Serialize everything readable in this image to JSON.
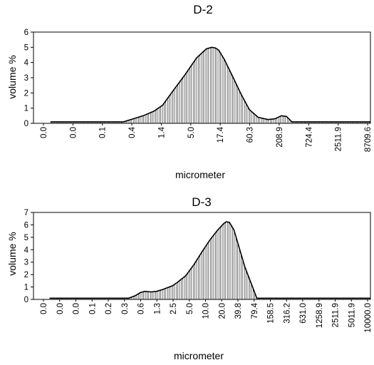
{
  "chart_data": [
    {
      "type": "area",
      "title": "D-2",
      "xlabel": "micrometer",
      "ylabel": "volume %",
      "ylim": [
        0,
        6
      ],
      "yticks": [
        0,
        1,
        2,
        3,
        4,
        5,
        6
      ],
      "x_scale": "log",
      "x_tick_labels": [
        "0.0",
        "0.0",
        "0.1",
        "0.4",
        "1.4",
        "5.0",
        "17.4",
        "60.3",
        "208.9",
        "724.4",
        "2511.9",
        "8709.6"
      ],
      "grid": false,
      "fill_pattern": "vertical-hatch",
      "x": [
        0.02,
        0.3,
        0.4,
        0.6,
        0.9,
        1.4,
        2.0,
        3.0,
        5.0,
        8.0,
        12.0,
        15.0,
        17.4,
        20.0,
        25.0,
        35.0,
        50.0,
        70.0,
        100.0,
        150.0,
        200.0,
        260.0,
        320.0,
        400.0,
        500.0,
        1000.0,
        10000.0
      ],
      "values": [
        0.1,
        0.1,
        0.1,
        0.3,
        0.5,
        0.8,
        1.2,
        2.1,
        3.2,
        4.3,
        4.9,
        5.0,
        4.95,
        4.8,
        4.2,
        3.1,
        1.9,
        0.9,
        0.4,
        0.25,
        0.3,
        0.5,
        0.45,
        0.1,
        0.1,
        0.1,
        0.1
      ]
    },
    {
      "type": "area",
      "title": "D-3",
      "xlabel": "micrometer",
      "ylabel": "volume %",
      "ylim": [
        0,
        7
      ],
      "yticks": [
        0,
        1,
        2,
        3,
        4,
        5,
        6,
        7
      ],
      "x_scale": "log",
      "x_tick_labels": [
        "0.0",
        "0.0",
        "0.0",
        "0.1",
        "0.2",
        "0.3",
        "0.6",
        "1.3",
        "2.5",
        "5.0",
        "10.0",
        "20.0",
        "39.8",
        "79.4",
        "158.5",
        "316.2",
        "631.0",
        "1258.9",
        "2511.9",
        "5011.9",
        "10000.0"
      ],
      "grid": false,
      "fill_pattern": "vertical-hatch",
      "x": [
        0.01,
        0.3,
        0.4,
        0.5,
        0.6,
        0.8,
        1.0,
        1.3,
        2.0,
        2.5,
        3.5,
        5.0,
        7.0,
        10.0,
        14.0,
        18.0,
        20.0,
        23.0,
        28.0,
        35.0,
        45.0,
        60.0,
        75.0,
        100.0,
        10000.0
      ],
      "values": [
        0.1,
        0.1,
        0.3,
        0.55,
        0.65,
        0.6,
        0.65,
        0.8,
        1.1,
        1.4,
        1.9,
        2.8,
        3.8,
        4.8,
        5.6,
        6.1,
        6.25,
        6.2,
        5.6,
        4.2,
        2.6,
        1.2,
        0.1,
        0.1,
        0.1
      ]
    }
  ]
}
